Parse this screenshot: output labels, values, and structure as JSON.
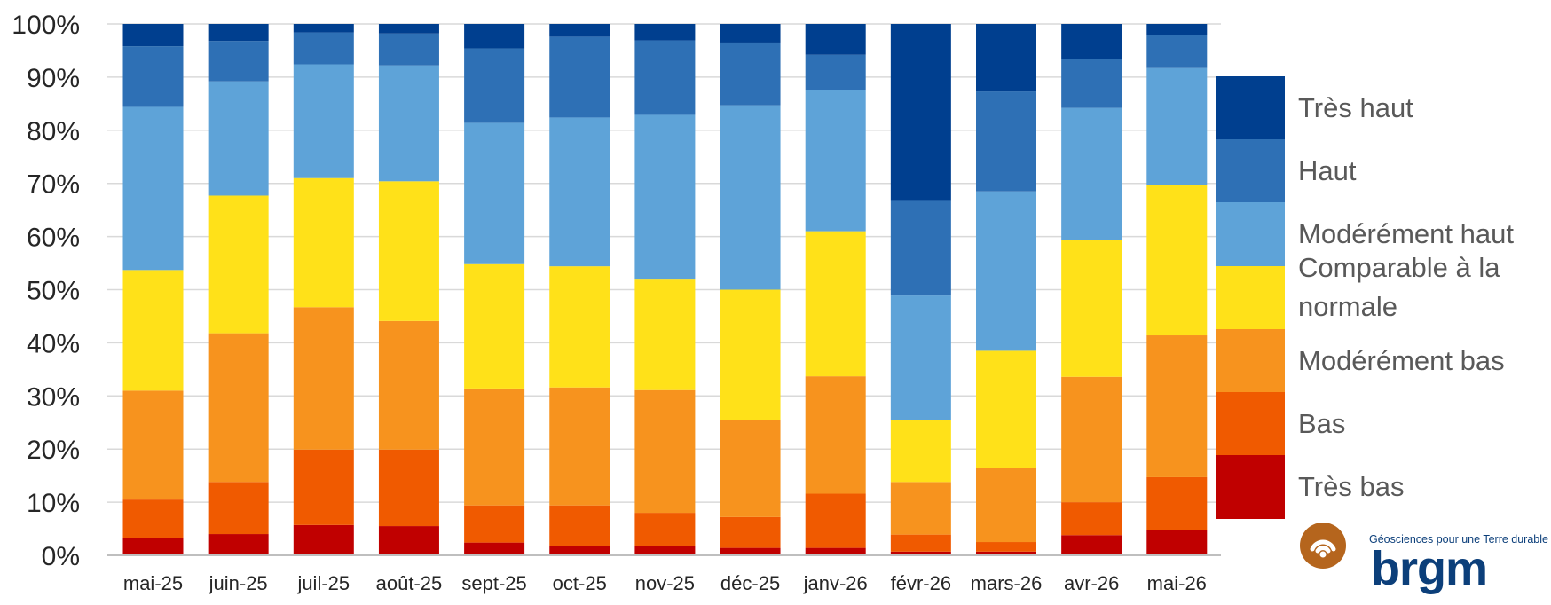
{
  "chart_data": {
    "type": "bar",
    "stacked": true,
    "percent": true,
    "categories": [
      "mai-25",
      "juin-25",
      "juil-25",
      "août-25",
      "sept-25",
      "oct-25",
      "nov-25",
      "déc-25",
      "janv-26",
      "févr-26",
      "mars-26",
      "avr-26",
      "mai-26"
    ],
    "yticks": [
      "0%",
      "10%",
      "20%",
      "30%",
      "40%",
      "50%",
      "60%",
      "70%",
      "80%",
      "90%",
      "100%"
    ],
    "ylim": [
      0,
      100
    ],
    "grid": true,
    "legend_position": "right",
    "series": [
      {
        "name": "Très bas",
        "color": "#c00000",
        "values": [
          3.2,
          4.0,
          5.7,
          5.5,
          2.4,
          1.8,
          1.8,
          1.4,
          1.4,
          0.7,
          0.7,
          3.8,
          4.8
        ]
      },
      {
        "name": "Bas",
        "color": "#f05a00",
        "values": [
          7.3,
          9.8,
          14.2,
          14.4,
          7.0,
          7.6,
          6.2,
          5.8,
          10.2,
          3.2,
          1.8,
          6.2,
          9.9
        ]
      },
      {
        "name": "Modérément bas",
        "color": "#f7931e",
        "values": [
          20.5,
          28.0,
          26.8,
          24.2,
          22.0,
          22.2,
          23.1,
          18.3,
          22.1,
          9.9,
          14.0,
          23.6,
          26.7
        ]
      },
      {
        "name": "Comparable à la normale",
        "color": "#ffe119",
        "values": [
          22.7,
          25.9,
          24.3,
          26.3,
          23.4,
          22.8,
          20.8,
          24.5,
          27.3,
          11.6,
          22.0,
          25.8,
          28.3
        ]
      },
      {
        "name": "Modérément haut",
        "color": "#5ea3d8",
        "values": [
          30.7,
          21.5,
          21.4,
          21.8,
          26.6,
          28.0,
          31.0,
          34.7,
          26.6,
          23.5,
          30.0,
          24.8,
          22.0
        ]
      },
      {
        "name": "Haut",
        "color": "#2e70b5",
        "values": [
          11.4,
          7.6,
          6.0,
          6.0,
          14.0,
          15.2,
          14.0,
          11.8,
          6.6,
          17.8,
          18.8,
          9.2,
          6.2
        ]
      },
      {
        "name": "Très haut",
        "color": "#003f8f",
        "values": [
          4.2,
          3.2,
          1.6,
          1.8,
          4.6,
          2.4,
          3.1,
          3.5,
          5.8,
          33.3,
          12.7,
          6.6,
          2.1
        ]
      }
    ]
  },
  "logo": {
    "tagline": "Géosciences pour une Terre durable",
    "word": "brgm"
  }
}
